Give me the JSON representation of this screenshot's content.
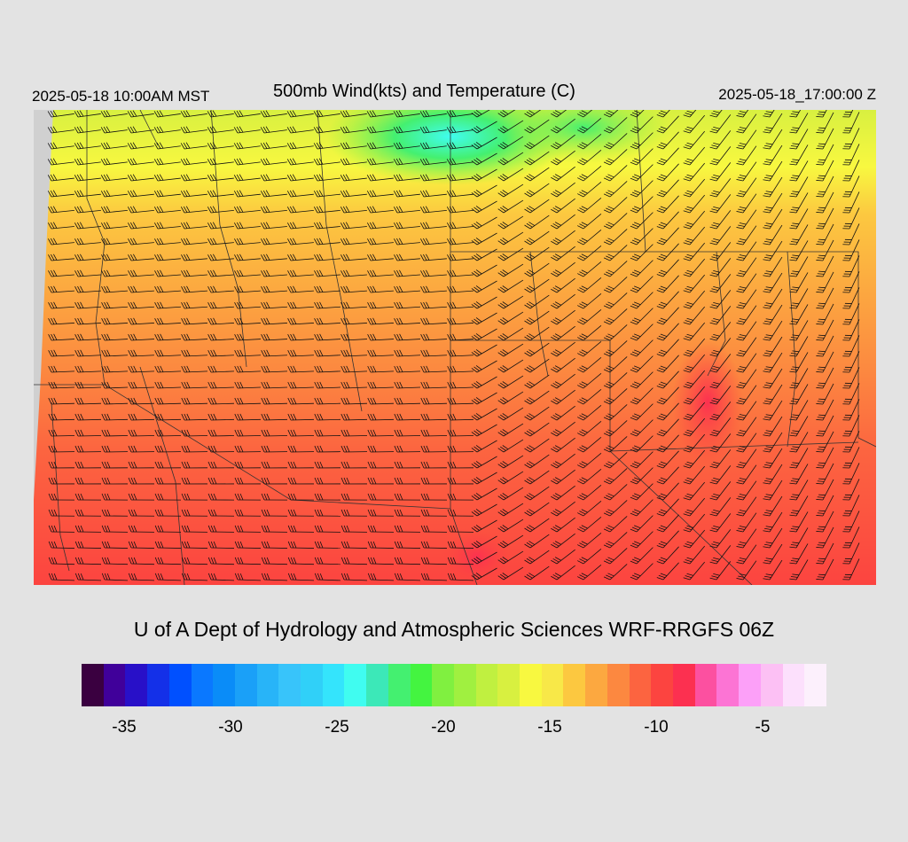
{
  "header": {
    "valid_local": "2025-05-18 10:00AM MST",
    "title": "500mb Wind(kts) and Temperature (C)",
    "valid_utc": "2025-05-18_17:00:00 Z"
  },
  "footer": {
    "credit": "U of A Dept of Hydrology and Atmospheric Sciences WRF-RRGFS 06Z"
  },
  "colorbar": {
    "colors": [
      "#3a0040",
      "#40009a",
      "#2810c8",
      "#1430e8",
      "#0050ff",
      "#0a78ff",
      "#0a8cf8",
      "#1aa0f8",
      "#28b4f8",
      "#38c4fa",
      "#30d0f8",
      "#34e4fc",
      "#40fcf0",
      "#3ce8b8",
      "#44f070",
      "#44f440",
      "#80f040",
      "#a0f040",
      "#c0f040",
      "#d8f040",
      "#f8f840",
      "#f8e848",
      "#fcc840",
      "#fca840",
      "#fc8840",
      "#fc6440",
      "#fc4440",
      "#fc3050",
      "#fc50a0",
      "#fc74d4",
      "#fca0f8",
      "#fcc0f4",
      "#fce0fc",
      "#fcf0fc"
    ],
    "tick_labels": [
      "-35",
      "-30",
      "-25",
      "-20",
      "-15",
      "-10",
      "-5"
    ],
    "tick_values": [
      -35,
      -30,
      -25,
      -20,
      -15,
      -10,
      -5
    ],
    "range": [
      -37,
      -2
    ]
  }
}
